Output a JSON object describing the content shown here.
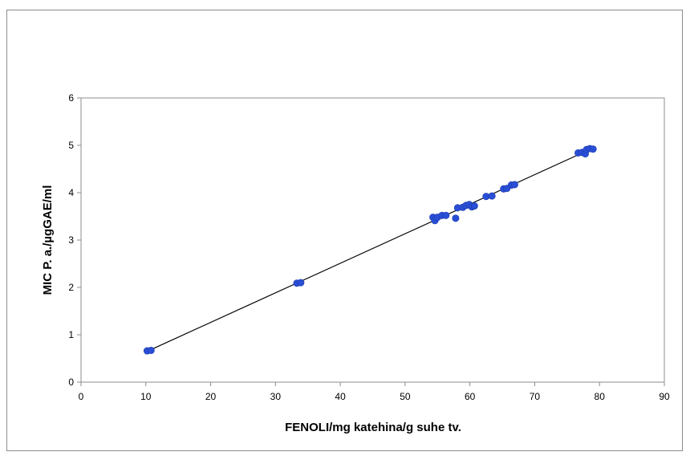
{
  "chart_data": {
    "type": "scatter",
    "title": "",
    "xlabel": "FENOLI/mg katehina/g suhe tv.",
    "ylabel": "MIC P. a./µgGAE/ml",
    "xlim": [
      0,
      90
    ],
    "ylim": [
      0,
      6
    ],
    "x_ticks": [
      0,
      10,
      20,
      30,
      40,
      50,
      60,
      70,
      80,
      90
    ],
    "y_ticks": [
      0,
      1,
      2,
      3,
      4,
      5,
      6
    ],
    "grid": false,
    "legend": "none",
    "marker_color": "#2a4fd6",
    "trendline": {
      "type": "linear",
      "from": [
        10.2,
        0.65
      ],
      "to": [
        78.8,
        4.93
      ],
      "color": "#000000"
    },
    "points": [
      [
        10.2,
        0.66
      ],
      [
        10.8,
        0.67
      ],
      [
        33.3,
        2.09
      ],
      [
        33.9,
        2.1
      ],
      [
        54.3,
        3.48
      ],
      [
        54.6,
        3.41
      ],
      [
        55.0,
        3.48
      ],
      [
        55.7,
        3.52
      ],
      [
        56.3,
        3.52
      ],
      [
        57.8,
        3.46
      ],
      [
        58.1,
        3.68
      ],
      [
        58.9,
        3.69
      ],
      [
        59.4,
        3.73
      ],
      [
        59.9,
        3.75
      ],
      [
        60.3,
        3.7
      ],
      [
        60.7,
        3.72
      ],
      [
        62.5,
        3.92
      ],
      [
        63.4,
        3.93
      ],
      [
        65.2,
        4.08
      ],
      [
        65.7,
        4.09
      ],
      [
        66.4,
        4.16
      ],
      [
        66.9,
        4.17
      ],
      [
        76.7,
        4.84
      ],
      [
        77.3,
        4.85
      ],
      [
        77.8,
        4.82
      ],
      [
        78.0,
        4.91
      ],
      [
        78.5,
        4.93
      ],
      [
        79.0,
        4.92
      ]
    ]
  }
}
